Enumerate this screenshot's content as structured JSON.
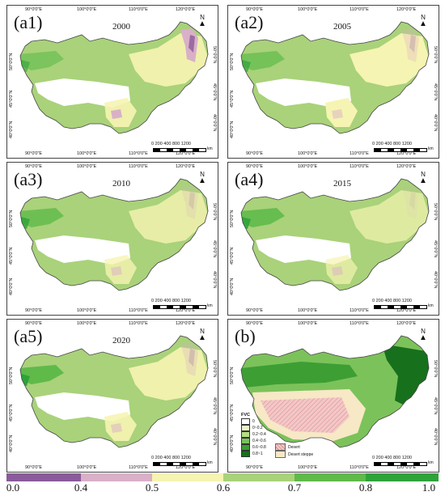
{
  "panels": [
    {
      "label": "(a1)",
      "year": "2000"
    },
    {
      "label": "(a2)",
      "year": "2005"
    },
    {
      "label": "(a3)",
      "year": "2010"
    },
    {
      "label": "(a4)",
      "year": "2015"
    },
    {
      "label": "(a5)",
      "year": "2020"
    },
    {
      "label": "(b)",
      "year": ""
    }
  ],
  "north_label": "N",
  "lon_labels": [
    "90°0'0\"E",
    "100°0'0\"E",
    "110°0'0\"E",
    "120°0'0\"E"
  ],
  "lat_labels": [
    "50°0'0\"N",
    "45°0'0\"N",
    "40°0'0\"N"
  ],
  "scale_bar": {
    "numbers": "0  200  400       800      1200",
    "unit": "km"
  },
  "colorbar": {
    "ticks": [
      "0.0",
      "0.4",
      "0.5",
      "0.6",
      "0.7",
      "0.8",
      "1.0"
    ],
    "colors": [
      "#8b5a9a",
      "#d9b0c8",
      "#f6f4b2",
      "#a9d27a",
      "#5fba4a",
      "#2ea33a"
    ]
  },
  "legend_b": {
    "title": "FVC",
    "items": [
      {
        "label": "0",
        "color": "#ffffff"
      },
      {
        "label": "0~0.2",
        "color": "#e9f6c5"
      },
      {
        "label": "0.2~0.4",
        "color": "#b5dd83"
      },
      {
        "label": "0.4~0.6",
        "color": "#7cc25a"
      },
      {
        "label": "0.6~0.8",
        "color": "#3d9e34"
      },
      {
        "label": "0.8~1",
        "color": "#17701c"
      }
    ],
    "zones": [
      {
        "label": "Desert",
        "color": "#f3c7c7"
      },
      {
        "label": "Desert steppe",
        "color": "#f7e8c6"
      }
    ]
  }
}
